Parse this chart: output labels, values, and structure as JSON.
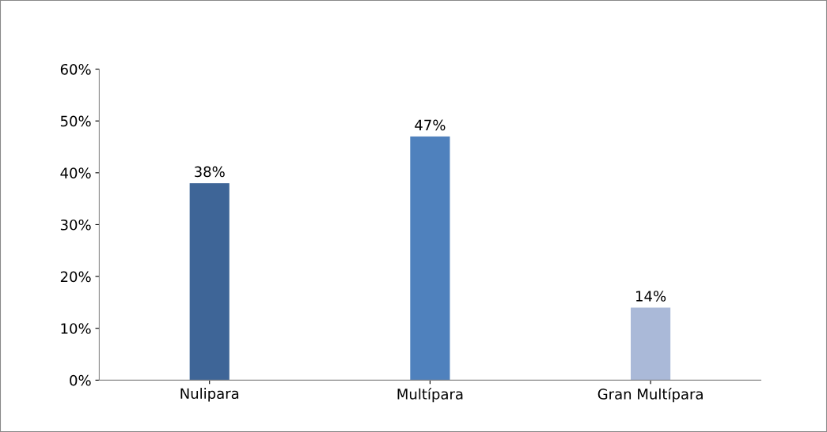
{
  "chart_data": {
    "type": "bar",
    "categories": [
      "Nulipara",
      "Multípara",
      "Gran Multípara"
    ],
    "values": [
      38,
      47,
      14
    ],
    "colors": [
      "#3e6597",
      "#4f81bd",
      "#aab9d8"
    ],
    "value_labels": [
      "38%",
      "47%",
      "14%"
    ],
    "ylim": [
      0,
      60
    ],
    "yticks": [
      {
        "value": 0,
        "label": "0%"
      },
      {
        "value": 10,
        "label": "10%"
      },
      {
        "value": 20,
        "label": "20%"
      },
      {
        "value": 30,
        "label": "30%"
      },
      {
        "value": 40,
        "label": "40%"
      },
      {
        "value": 50,
        "label": "50%"
      },
      {
        "value": 60,
        "label": "60%"
      }
    ],
    "grid": false
  }
}
